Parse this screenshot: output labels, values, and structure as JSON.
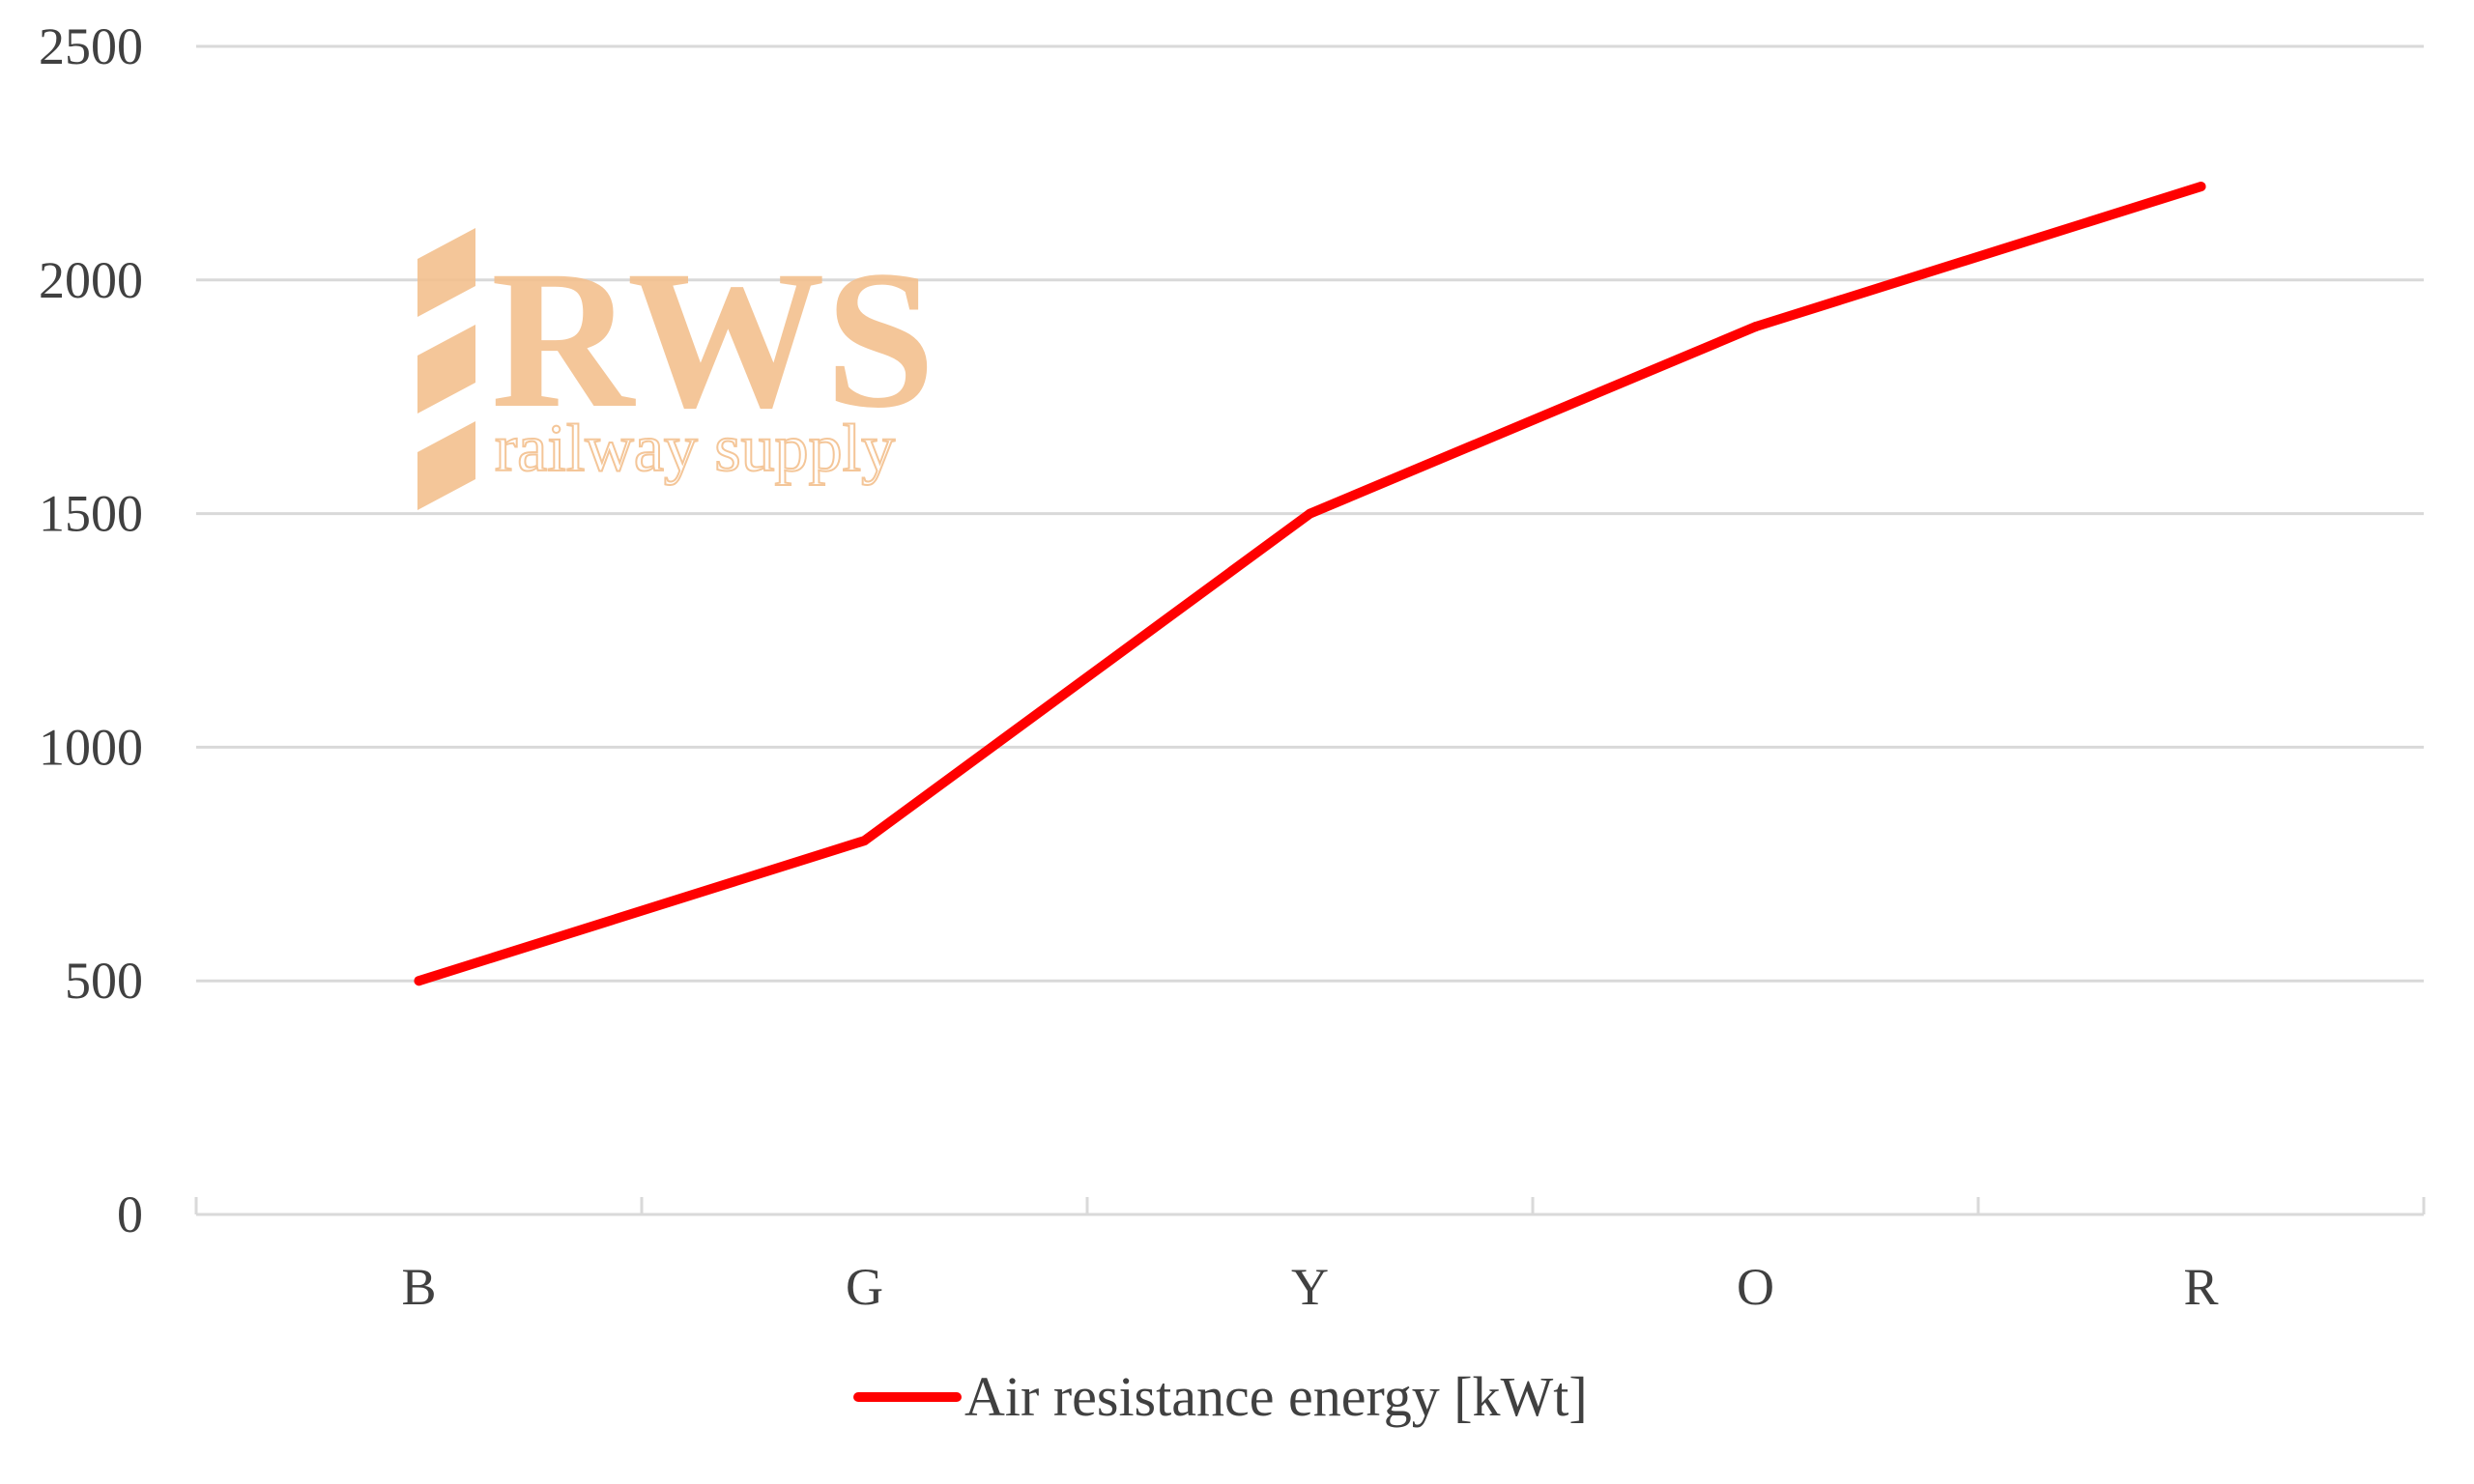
{
  "chart_data": {
    "type": "line",
    "categories": [
      "B",
      "G",
      "Y",
      "O",
      "R"
    ],
    "series": [
      {
        "name": "Air resistance energy [kWt]",
        "values": [
          500,
          800,
          1500,
          1900,
          2200
        ],
        "color": "#ff0000"
      }
    ],
    "title": "",
    "xlabel": "",
    "ylabel": "",
    "ylim": [
      0,
      2500
    ],
    "yticks": [
      "0",
      "500",
      "1000",
      "1500",
      "2000",
      "2500"
    ],
    "grid": true,
    "legend": "bottom"
  },
  "watermark": {
    "brand": "RWS",
    "tagline": "railway supply",
    "color": "#f3c08e"
  }
}
